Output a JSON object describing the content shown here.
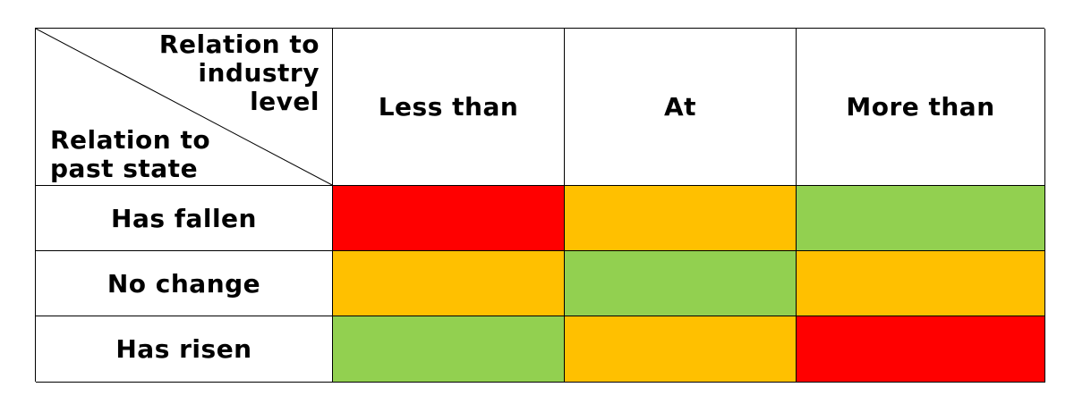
{
  "corner": {
    "column_axis_label": "Relation to industry level",
    "row_axis_label": "Relation to past state"
  },
  "columns": [
    "Less than",
    "At",
    "More than"
  ],
  "rows": [
    {
      "label": "Has fallen",
      "cells": [
        "red",
        "amber",
        "green"
      ]
    },
    {
      "label": "No change",
      "cells": [
        "amber",
        "green",
        "amber"
      ]
    },
    {
      "label": "Has risen",
      "cells": [
        "green",
        "amber",
        "red"
      ]
    }
  ],
  "colors": {
    "red": "#ff0000",
    "amber": "#ffc000",
    "green": "#92d050"
  }
}
